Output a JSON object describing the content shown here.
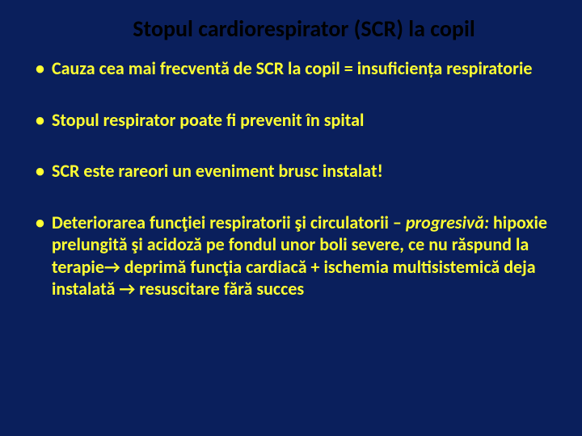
{
  "slide": {
    "background_color": "#0a1f5c",
    "title_color": "#000000",
    "text_color": "#ffff33",
    "title_fontsize": 28,
    "body_fontsize": 22,
    "title": "Stopul cardiorespirator (SCR) la copil",
    "bullets": [
      {
        "text": "Cauza cea mai frecventă de SCR la copil = insuficiența respiratorie"
      },
      {
        "text": "Stopul respirator poate fi prevenit în spital"
      },
      {
        "text": "SCR este rareori un eveniment brusc instalat!"
      },
      {
        "lead": "Deteriorarea funcţiei respiratorii şi circulatorii – ",
        "italic": "progresivă:",
        "rest": " hipoxie prelungită şi acidoză pe fondul unor boli severe, ce nu răspund la terapie→ deprimă funcţia cardiacă + ischemia multisistemică deja  instalată → resuscitare fără succes"
      }
    ]
  }
}
